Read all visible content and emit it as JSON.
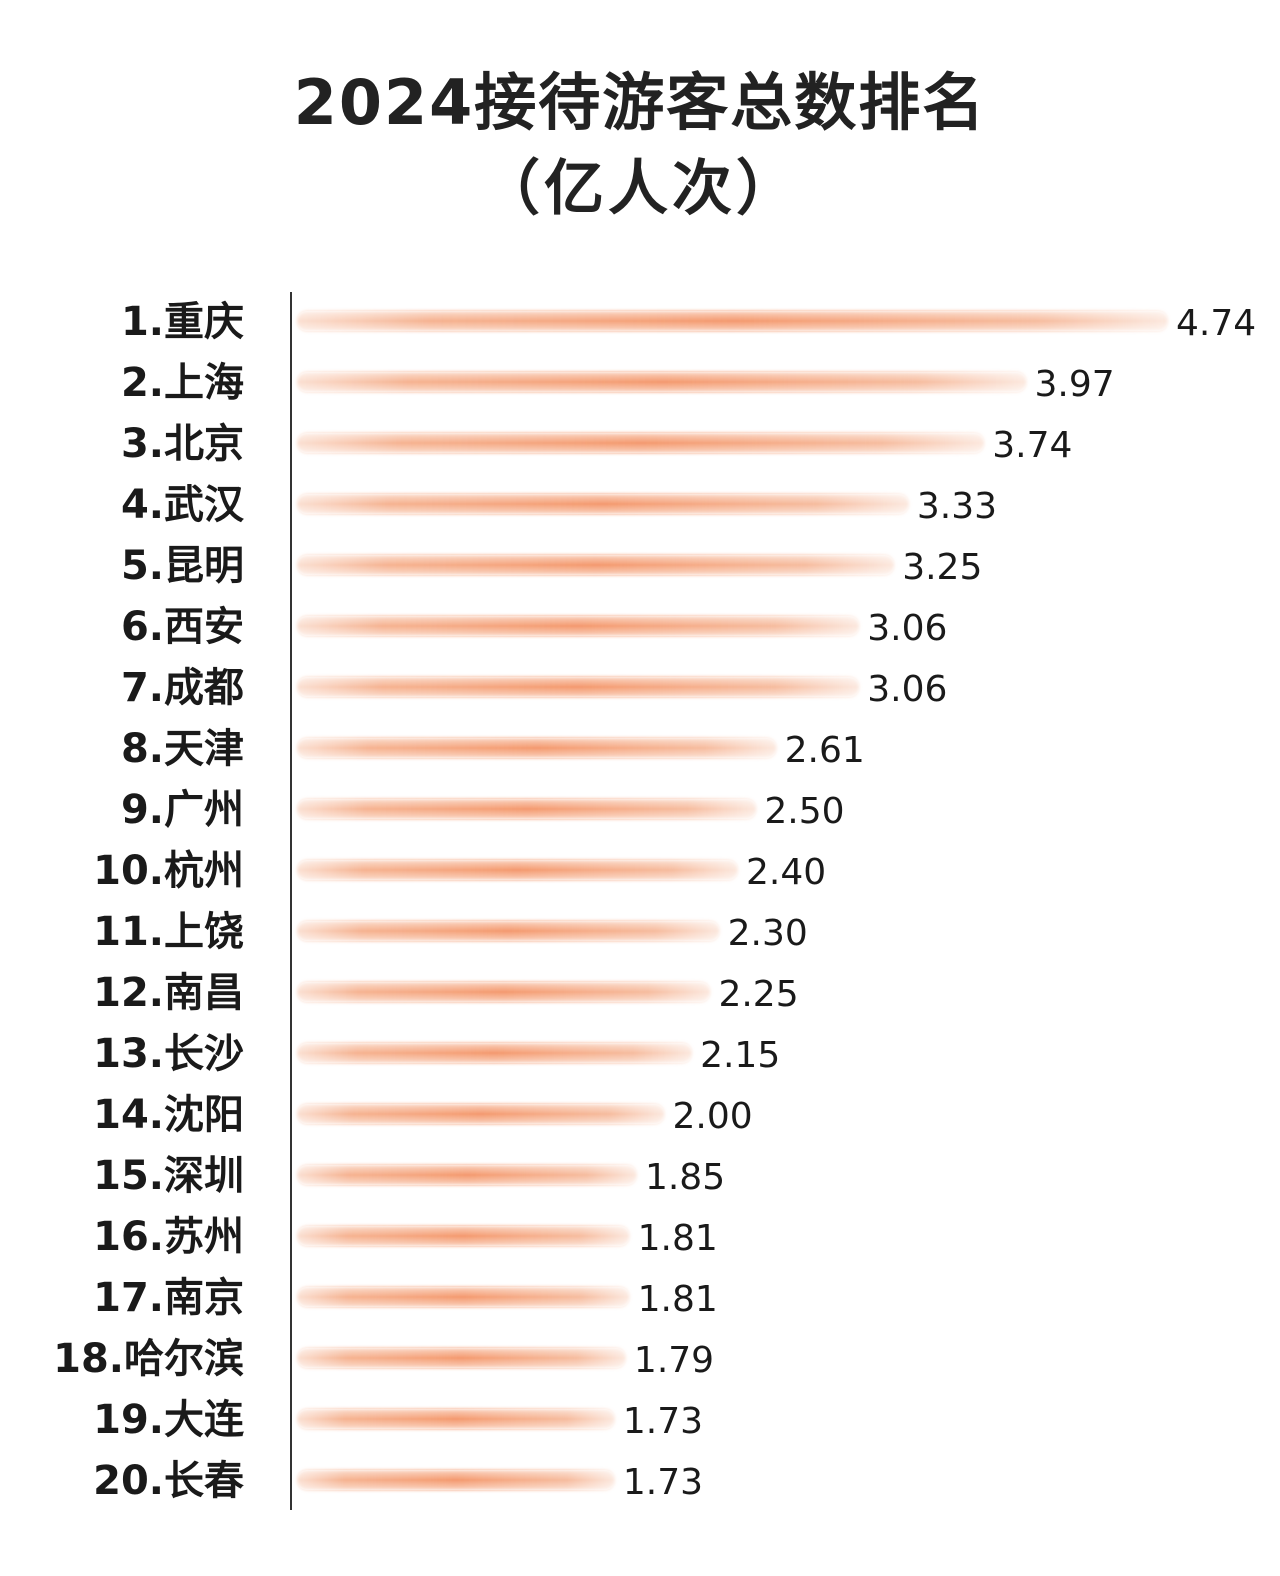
{
  "chart_data": {
    "type": "bar",
    "orientation": "horizontal",
    "title": "2024接待游客总数排名",
    "subtitle": "（亿人次）",
    "categories": [
      "1.重庆",
      "2.上海",
      "3.北京",
      "4.武汉",
      "5.昆明",
      "6.西安",
      "7.成都",
      "8.天津",
      "9.广州",
      "10.杭州",
      "11.上饶",
      "12.南昌",
      "13.长沙",
      "14.沈阳",
      "15.深圳",
      "16.苏州",
      "17.南京",
      "18.哈尔滨",
      "19.大连",
      "20.长春"
    ],
    "values": [
      4.74,
      3.97,
      3.74,
      3.33,
      3.25,
      3.06,
      3.06,
      2.61,
      2.5,
      2.4,
      2.3,
      2.25,
      2.15,
      2.0,
      1.85,
      1.81,
      1.81,
      1.79,
      1.73,
      1.73
    ],
    "value_labels": [
      "4.74",
      "3.97",
      "3.74",
      "3.33",
      "3.25",
      "3.06",
      "3.06",
      "2.61",
      "2.50",
      "2.40",
      "2.30",
      "2.25",
      "2.15",
      "2.00",
      "1.85",
      "1.81",
      "1.81",
      "1.79",
      "1.73",
      "1.73"
    ],
    "xlim": [
      0,
      4.74
    ],
    "grid": false,
    "legend": "none",
    "bar_color": "#f4a67f",
    "axis_color": "#333333"
  }
}
